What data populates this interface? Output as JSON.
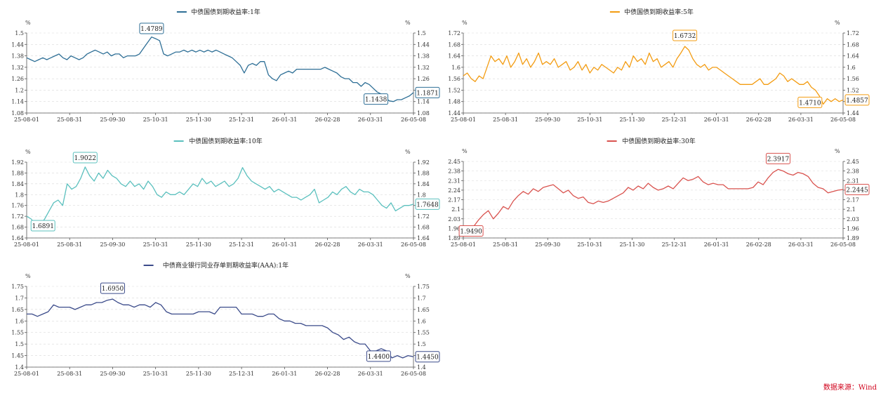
{
  "source_label": "数据来源：Wind",
  "chart_data": [
    {
      "type": "line",
      "title": "中债国债到期收益率:1年",
      "color": "#2e6f96",
      "y_unit": "%",
      "ylim": [
        1.08,
        1.5
      ],
      "yticks": [
        1.08,
        1.14,
        1.2,
        1.26,
        1.32,
        1.38,
        1.44,
        1.5
      ],
      "xticks": [
        "25-08-01",
        "25-08-31",
        "25-09-30",
        "25-10-31",
        "25-11-30",
        "25-12-31",
        "26-01-31",
        "26-02-28",
        "26-03-31",
        "26-05-08"
      ],
      "grid": "horizontal-dashed",
      "legend": "top-center",
      "series": [
        {
          "values": [
            1.37,
            1.36,
            1.35,
            1.36,
            1.37,
            1.36,
            1.37,
            1.38,
            1.39,
            1.37,
            1.36,
            1.38,
            1.37,
            1.36,
            1.37,
            1.39,
            1.4,
            1.41,
            1.4,
            1.39,
            1.4,
            1.38,
            1.39,
            1.39,
            1.37,
            1.38,
            1.38,
            1.38,
            1.39,
            1.42,
            1.45,
            1.4789,
            1.47,
            1.46,
            1.39,
            1.38,
            1.39,
            1.4,
            1.4,
            1.41,
            1.4,
            1.41,
            1.4,
            1.41,
            1.4,
            1.41,
            1.4,
            1.41,
            1.4,
            1.39,
            1.38,
            1.37,
            1.35,
            1.33,
            1.29,
            1.33,
            1.34,
            1.33,
            1.35,
            1.35,
            1.28,
            1.26,
            1.25,
            1.28,
            1.29,
            1.3,
            1.29,
            1.31,
            1.31,
            1.31,
            1.31,
            1.31,
            1.31,
            1.31,
            1.32,
            1.31,
            1.3,
            1.29,
            1.27,
            1.26,
            1.26,
            1.24,
            1.24,
            1.22,
            1.24,
            1.23,
            1.21,
            1.19,
            1.18,
            1.16,
            1.1438,
            1.14,
            1.15,
            1.15,
            1.16,
            1.17,
            1.1871
          ]
        }
      ],
      "annotations": [
        {
          "label": "1.4789",
          "value": 1.4789
        },
        {
          "label": "1.1438",
          "value": 1.1438
        },
        {
          "label": "1.1871",
          "value": 1.1871
        }
      ]
    },
    {
      "type": "line",
      "title": "中债国债到期收益率:5年",
      "color": "#f39c12",
      "y_unit": "%",
      "ylim": [
        1.44,
        1.72
      ],
      "yticks": [
        1.44,
        1.48,
        1.52,
        1.56,
        1.6,
        1.64,
        1.68,
        1.72
      ],
      "xticks": [
        "25-08-01",
        "25-08-31",
        "25-09-30",
        "25-10-31",
        "25-11-30",
        "25-12-31",
        "26-01-31",
        "26-02-28",
        "26-03-31",
        "26-05-08"
      ],
      "grid": "horizontal-dashed",
      "legend": "top-center",
      "series": [
        {
          "values": [
            1.57,
            1.58,
            1.56,
            1.55,
            1.57,
            1.56,
            1.6,
            1.64,
            1.62,
            1.63,
            1.61,
            1.64,
            1.6,
            1.62,
            1.65,
            1.61,
            1.63,
            1.6,
            1.62,
            1.65,
            1.61,
            1.62,
            1.61,
            1.63,
            1.6,
            1.61,
            1.62,
            1.59,
            1.6,
            1.62,
            1.59,
            1.61,
            1.58,
            1.6,
            1.59,
            1.61,
            1.6,
            1.59,
            1.58,
            1.6,
            1.59,
            1.62,
            1.6,
            1.64,
            1.62,
            1.63,
            1.61,
            1.65,
            1.62,
            1.63,
            1.6,
            1.61,
            1.62,
            1.6,
            1.63,
            1.65,
            1.6732,
            1.66,
            1.63,
            1.61,
            1.6,
            1.61,
            1.59,
            1.6,
            1.6,
            1.59,
            1.58,
            1.57,
            1.56,
            1.55,
            1.54,
            1.54,
            1.54,
            1.54,
            1.55,
            1.56,
            1.54,
            1.54,
            1.55,
            1.56,
            1.58,
            1.57,
            1.55,
            1.56,
            1.55,
            1.54,
            1.54,
            1.55,
            1.53,
            1.52,
            1.5,
            1.471,
            1.49,
            1.48,
            1.49,
            1.48,
            1.4857
          ]
        }
      ],
      "annotations": [
        {
          "label": "1.6732",
          "value": 1.6732
        },
        {
          "label": "1.4710",
          "value": 1.471
        },
        {
          "label": "1.4857",
          "value": 1.4857
        }
      ]
    },
    {
      "type": "line",
      "title": "中债国债到期收益率:10年",
      "color": "#5bc0be",
      "y_unit": "%",
      "ylim": [
        1.64,
        1.92
      ],
      "yticks": [
        1.64,
        1.68,
        1.72,
        1.76,
        1.8,
        1.84,
        1.88,
        1.92
      ],
      "xticks": [
        "25-08-01",
        "25-08-31",
        "25-09-30",
        "25-10-31",
        "25-11-30",
        "25-12-31",
        "26-01-31",
        "26-02-28",
        "26-03-31",
        "26-05-08"
      ],
      "grid": "horizontal-dashed",
      "legend": "top-center",
      "series": [
        {
          "values": [
            1.72,
            1.71,
            1.69,
            1.6891,
            1.71,
            1.74,
            1.77,
            1.78,
            1.76,
            1.84,
            1.82,
            1.83,
            1.86,
            1.9022,
            1.87,
            1.85,
            1.88,
            1.86,
            1.89,
            1.87,
            1.86,
            1.84,
            1.83,
            1.85,
            1.83,
            1.84,
            1.82,
            1.85,
            1.83,
            1.8,
            1.79,
            1.81,
            1.8,
            1.8,
            1.81,
            1.8,
            1.82,
            1.84,
            1.83,
            1.86,
            1.84,
            1.85,
            1.83,
            1.84,
            1.85,
            1.83,
            1.84,
            1.86,
            1.9,
            1.87,
            1.85,
            1.84,
            1.83,
            1.82,
            1.83,
            1.81,
            1.82,
            1.81,
            1.8,
            1.79,
            1.79,
            1.78,
            1.79,
            1.8,
            1.82,
            1.77,
            1.78,
            1.79,
            1.81,
            1.8,
            1.82,
            1.83,
            1.81,
            1.8,
            1.82,
            1.81,
            1.81,
            1.8,
            1.78,
            1.76,
            1.75,
            1.77,
            1.74,
            1.75,
            1.76,
            1.76,
            1.7648
          ]
        }
      ],
      "annotations": [
        {
          "label": "1.9022",
          "value": 1.9022
        },
        {
          "label": "1.6891",
          "value": 1.6891
        },
        {
          "label": "1.7648",
          "value": 1.7648
        }
      ]
    },
    {
      "type": "line",
      "title": "中债国债到期收益率:30年",
      "color": "#d9534f",
      "y_unit": "%",
      "ylim": [
        1.89,
        2.45
      ],
      "yticks": [
        1.89,
        1.96,
        2.03,
        2.1,
        2.17,
        2.24,
        2.31,
        2.38,
        2.45
      ],
      "xticks": [
        "25-08-01",
        "25-08-31",
        "25-09-30",
        "25-10-31",
        "25-11-30",
        "25-12-31",
        "26-01-31",
        "26-02-28",
        "26-03-31",
        "26-05-08"
      ],
      "grid": "horizontal-dashed",
      "legend": "top-center",
      "series": [
        {
          "values": [
            1.96,
            1.949,
            1.97,
            2.02,
            2.06,
            2.09,
            2.03,
            2.07,
            2.12,
            2.1,
            2.16,
            2.2,
            2.23,
            2.21,
            2.25,
            2.23,
            2.26,
            2.27,
            2.28,
            2.25,
            2.22,
            2.24,
            2.2,
            2.18,
            2.19,
            2.15,
            2.14,
            2.16,
            2.15,
            2.16,
            2.18,
            2.2,
            2.22,
            2.26,
            2.24,
            2.27,
            2.25,
            2.29,
            2.26,
            2.24,
            2.25,
            2.27,
            2.25,
            2.29,
            2.33,
            2.31,
            2.32,
            2.34,
            2.3,
            2.28,
            2.29,
            2.28,
            2.28,
            2.25,
            2.25,
            2.25,
            2.25,
            2.25,
            2.26,
            2.3,
            2.28,
            2.33,
            2.37,
            2.3917,
            2.38,
            2.36,
            2.35,
            2.37,
            2.36,
            2.34,
            2.29,
            2.26,
            2.25,
            2.22,
            2.23,
            2.24,
            2.2445
          ]
        }
      ],
      "annotations": [
        {
          "label": "2.3917",
          "value": 2.3917
        },
        {
          "label": "1.9490",
          "value": 1.949
        },
        {
          "label": "2.2445",
          "value": 2.2445
        }
      ]
    },
    {
      "type": "line",
      "title": "中债商业银行同业存单到期收益率(AAA):1年",
      "color": "#3b4b8a",
      "y_unit": "%",
      "ylim": [
        1.4,
        1.75
      ],
      "yticks": [
        1.4,
        1.45,
        1.5,
        1.55,
        1.6,
        1.65,
        1.7,
        1.75
      ],
      "xticks": [
        "25-08-01",
        "25-08-31",
        "25-09-30",
        "25-10-31",
        "25-11-30",
        "25-12-31",
        "26-01-31",
        "26-02-28",
        "26-03-31",
        "26-05-08"
      ],
      "grid": "horizontal-dashed",
      "legend": "top-center",
      "series": [
        {
          "values": [
            1.63,
            1.63,
            1.62,
            1.63,
            1.64,
            1.67,
            1.66,
            1.66,
            1.66,
            1.65,
            1.66,
            1.67,
            1.67,
            1.68,
            1.68,
            1.69,
            1.695,
            1.68,
            1.67,
            1.67,
            1.66,
            1.67,
            1.67,
            1.66,
            1.68,
            1.67,
            1.64,
            1.63,
            1.63,
            1.63,
            1.63,
            1.63,
            1.64,
            1.64,
            1.64,
            1.63,
            1.66,
            1.66,
            1.66,
            1.66,
            1.63,
            1.63,
            1.63,
            1.62,
            1.62,
            1.63,
            1.63,
            1.61,
            1.6,
            1.6,
            1.59,
            1.59,
            1.58,
            1.58,
            1.58,
            1.58,
            1.57,
            1.55,
            1.54,
            1.52,
            1.53,
            1.51,
            1.5,
            1.5,
            1.47,
            1.47,
            1.48,
            1.47,
            1.44,
            1.45,
            1.44,
            1.45,
            1.445
          ]
        }
      ],
      "annotations": [
        {
          "label": "1.6950",
          "value": 1.695
        },
        {
          "label": "1.4400",
          "value": 1.44
        },
        {
          "label": "1.4450",
          "value": 1.445
        }
      ]
    }
  ]
}
